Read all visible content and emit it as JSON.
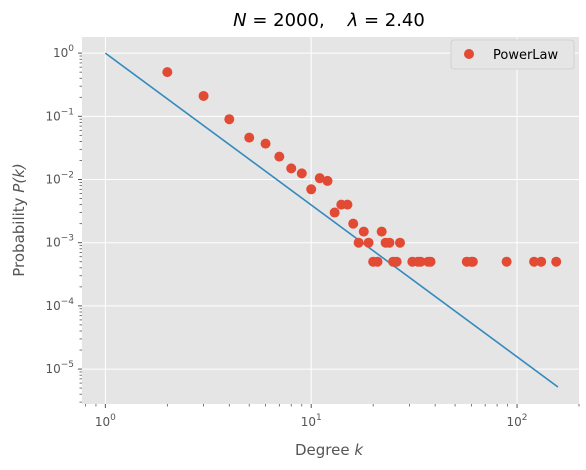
{
  "chart_data": {
    "type": "scatter",
    "title": "N = 2000,    λ = 2.40",
    "title_parts": {
      "n_var": "N",
      "n_val": " = 2000,    ",
      "lam_var": "λ",
      "lam_val": " = 2.40"
    },
    "xlabel": "Degree k",
    "xlabel_parts": {
      "text": "Degree ",
      "var": "k"
    },
    "ylabel": "Probability P(k)",
    "ylabel_parts": {
      "text": "Probability ",
      "var": "P(k)"
    },
    "xscale": "log",
    "yscale": "log",
    "xlim": [
      0.77,
      200
    ],
    "ylim": [
      2.8e-06,
      1.8
    ],
    "grid": true,
    "legend_position": "top-right",
    "x_ticks": [
      {
        "value": 1,
        "base": "10",
        "exp": "0"
      },
      {
        "value": 10,
        "base": "10",
        "exp": "1"
      },
      {
        "value": 100,
        "base": "10",
        "exp": "2"
      }
    ],
    "y_ticks": [
      {
        "value": 1,
        "base": "10",
        "exp": "0"
      },
      {
        "value": 0.1,
        "base": "10",
        "exp": "−1"
      },
      {
        "value": 0.01,
        "base": "10",
        "exp": "−2"
      },
      {
        "value": 0.001,
        "base": "10",
        "exp": "−3"
      },
      {
        "value": 0.0001,
        "base": "10",
        "exp": "−4"
      },
      {
        "value": 1e-05,
        "base": "10",
        "exp": "−5"
      }
    ],
    "series": [
      {
        "name": "PowerLaw",
        "kind": "scatter",
        "color": "#E24A33",
        "points": [
          {
            "x": 2,
            "y": 0.5
          },
          {
            "x": 3,
            "y": 0.21
          },
          {
            "x": 4,
            "y": 0.09
          },
          {
            "x": 5,
            "y": 0.046
          },
          {
            "x": 6,
            "y": 0.037
          },
          {
            "x": 7,
            "y": 0.023
          },
          {
            "x": 8,
            "y": 0.015
          },
          {
            "x": 9,
            "y": 0.0125
          },
          {
            "x": 10,
            "y": 0.007
          },
          {
            "x": 11,
            "y": 0.0105
          },
          {
            "x": 12,
            "y": 0.0095
          },
          {
            "x": 13,
            "y": 0.003
          },
          {
            "x": 14,
            "y": 0.004
          },
          {
            "x": 15,
            "y": 0.004
          },
          {
            "x": 16,
            "y": 0.002
          },
          {
            "x": 17,
            "y": 0.001
          },
          {
            "x": 18,
            "y": 0.0015
          },
          {
            "x": 19,
            "y": 0.001
          },
          {
            "x": 20,
            "y": 0.0005
          },
          {
            "x": 21,
            "y": 0.0005
          },
          {
            "x": 22,
            "y": 0.0015
          },
          {
            "x": 23,
            "y": 0.001
          },
          {
            "x": 24,
            "y": 0.001
          },
          {
            "x": 25,
            "y": 0.0005
          },
          {
            "x": 26,
            "y": 0.0005
          },
          {
            "x": 27,
            "y": 0.001
          },
          {
            "x": 31,
            "y": 0.0005
          },
          {
            "x": 33,
            "y": 0.0005
          },
          {
            "x": 34,
            "y": 0.0005
          },
          {
            "x": 37,
            "y": 0.0005
          },
          {
            "x": 38,
            "y": 0.0005
          },
          {
            "x": 57,
            "y": 0.0005
          },
          {
            "x": 60,
            "y": 0.0005
          },
          {
            "x": 61,
            "y": 0.0005
          },
          {
            "x": 89,
            "y": 0.0005
          },
          {
            "x": 121,
            "y": 0.0005
          },
          {
            "x": 131,
            "y": 0.0005
          },
          {
            "x": 155,
            "y": 0.0005
          }
        ]
      },
      {
        "kind": "line",
        "color": "#348ABD",
        "points": [
          {
            "x": 1,
            "y": 1
          },
          {
            "x": 158,
            "y": 5.2e-06
          }
        ]
      }
    ],
    "colors": {
      "background": "#E5E5E5",
      "grid": "#FFFFFF",
      "text": "#555555"
    }
  }
}
